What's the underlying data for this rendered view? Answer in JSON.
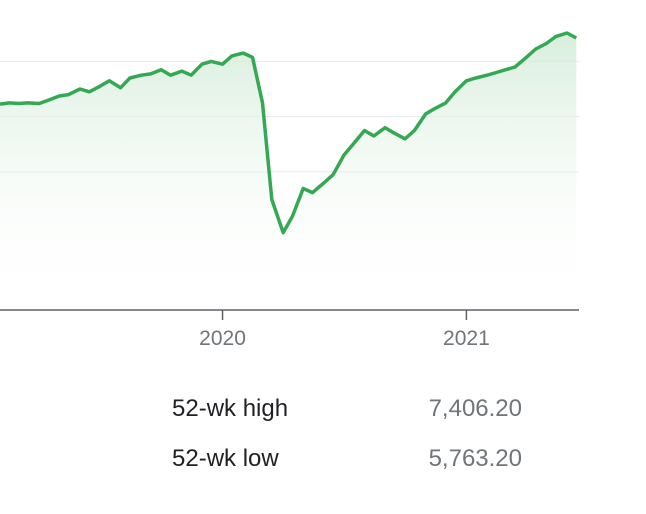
{
  "chart_data": {
    "type": "area",
    "title": "",
    "xlabel": "",
    "ylabel": "",
    "x_range": [
      "2019-02",
      "2021-06"
    ],
    "ylim": [
      5400,
      7500
    ],
    "x_ticks": [
      {
        "date": "2020-01",
        "label": "2020"
      },
      {
        "date": "2021-01",
        "label": "2021"
      }
    ],
    "y_gridlines": [
      6400,
      6800,
      7200
    ],
    "grid": true,
    "line_color": "#34a853",
    "fill_color": "#e6f4ea",
    "series": [
      {
        "values": [
          [
            "2019-02",
            6890
          ],
          [
            "2019-02-15",
            6900
          ],
          [
            "2019-03",
            6895
          ],
          [
            "2019-03-15",
            6900
          ],
          [
            "2019-04",
            6895
          ],
          [
            "2019-04-15",
            6920
          ],
          [
            "2019-05",
            6950
          ],
          [
            "2019-05-15",
            6960
          ],
          [
            "2019-06",
            7000
          ],
          [
            "2019-06-15",
            6980
          ],
          [
            "2019-07",
            7020
          ],
          [
            "2019-07-15",
            7060
          ],
          [
            "2019-08",
            7010
          ],
          [
            "2019-08-15",
            7080
          ],
          [
            "2019-09",
            7100
          ],
          [
            "2019-09-15",
            7110
          ],
          [
            "2019-10",
            7140
          ],
          [
            "2019-10-15",
            7100
          ],
          [
            "2019-11",
            7130
          ],
          [
            "2019-11-15",
            7100
          ],
          [
            "2019-12",
            7180
          ],
          [
            "2019-12-15",
            7200
          ],
          [
            "2020-01",
            7180
          ],
          [
            "2020-01-15",
            7240
          ],
          [
            "2020-02",
            7260
          ],
          [
            "2020-02-15",
            7230
          ],
          [
            "2020-03",
            6900
          ],
          [
            "2020-03-15",
            6200
          ],
          [
            "2020-04",
            5960
          ],
          [
            "2020-04-15",
            6080
          ],
          [
            "2020-05",
            6280
          ],
          [
            "2020-05-15",
            6250
          ],
          [
            "2020-06",
            6320
          ],
          [
            "2020-06-15",
            6380
          ],
          [
            "2020-07",
            6520
          ],
          [
            "2020-07-15",
            6600
          ],
          [
            "2020-08",
            6700
          ],
          [
            "2020-08-15",
            6660
          ],
          [
            "2020-09",
            6720
          ],
          [
            "2020-09-15",
            6680
          ],
          [
            "2020-10",
            6640
          ],
          [
            "2020-10-15",
            6700
          ],
          [
            "2020-11",
            6820
          ],
          [
            "2020-11-15",
            6860
          ],
          [
            "2020-12",
            6900
          ],
          [
            "2020-12-15",
            6980
          ],
          [
            "2021-01",
            7060
          ],
          [
            "2021-01-15",
            7080
          ],
          [
            "2021-02",
            7100
          ],
          [
            "2021-02-15",
            7120
          ],
          [
            "2021-03",
            7140
          ],
          [
            "2021-03-15",
            7160
          ],
          [
            "2021-04",
            7230
          ],
          [
            "2021-04-15",
            7290
          ],
          [
            "2021-05",
            7330
          ],
          [
            "2021-05-15",
            7380
          ],
          [
            "2021-06",
            7406
          ],
          [
            "2021-06-15",
            7370
          ]
        ]
      }
    ]
  },
  "stats": [
    {
      "label": "52-wk high",
      "value": "7,406.20"
    },
    {
      "label": "52-wk low",
      "value": "5,763.20"
    }
  ]
}
